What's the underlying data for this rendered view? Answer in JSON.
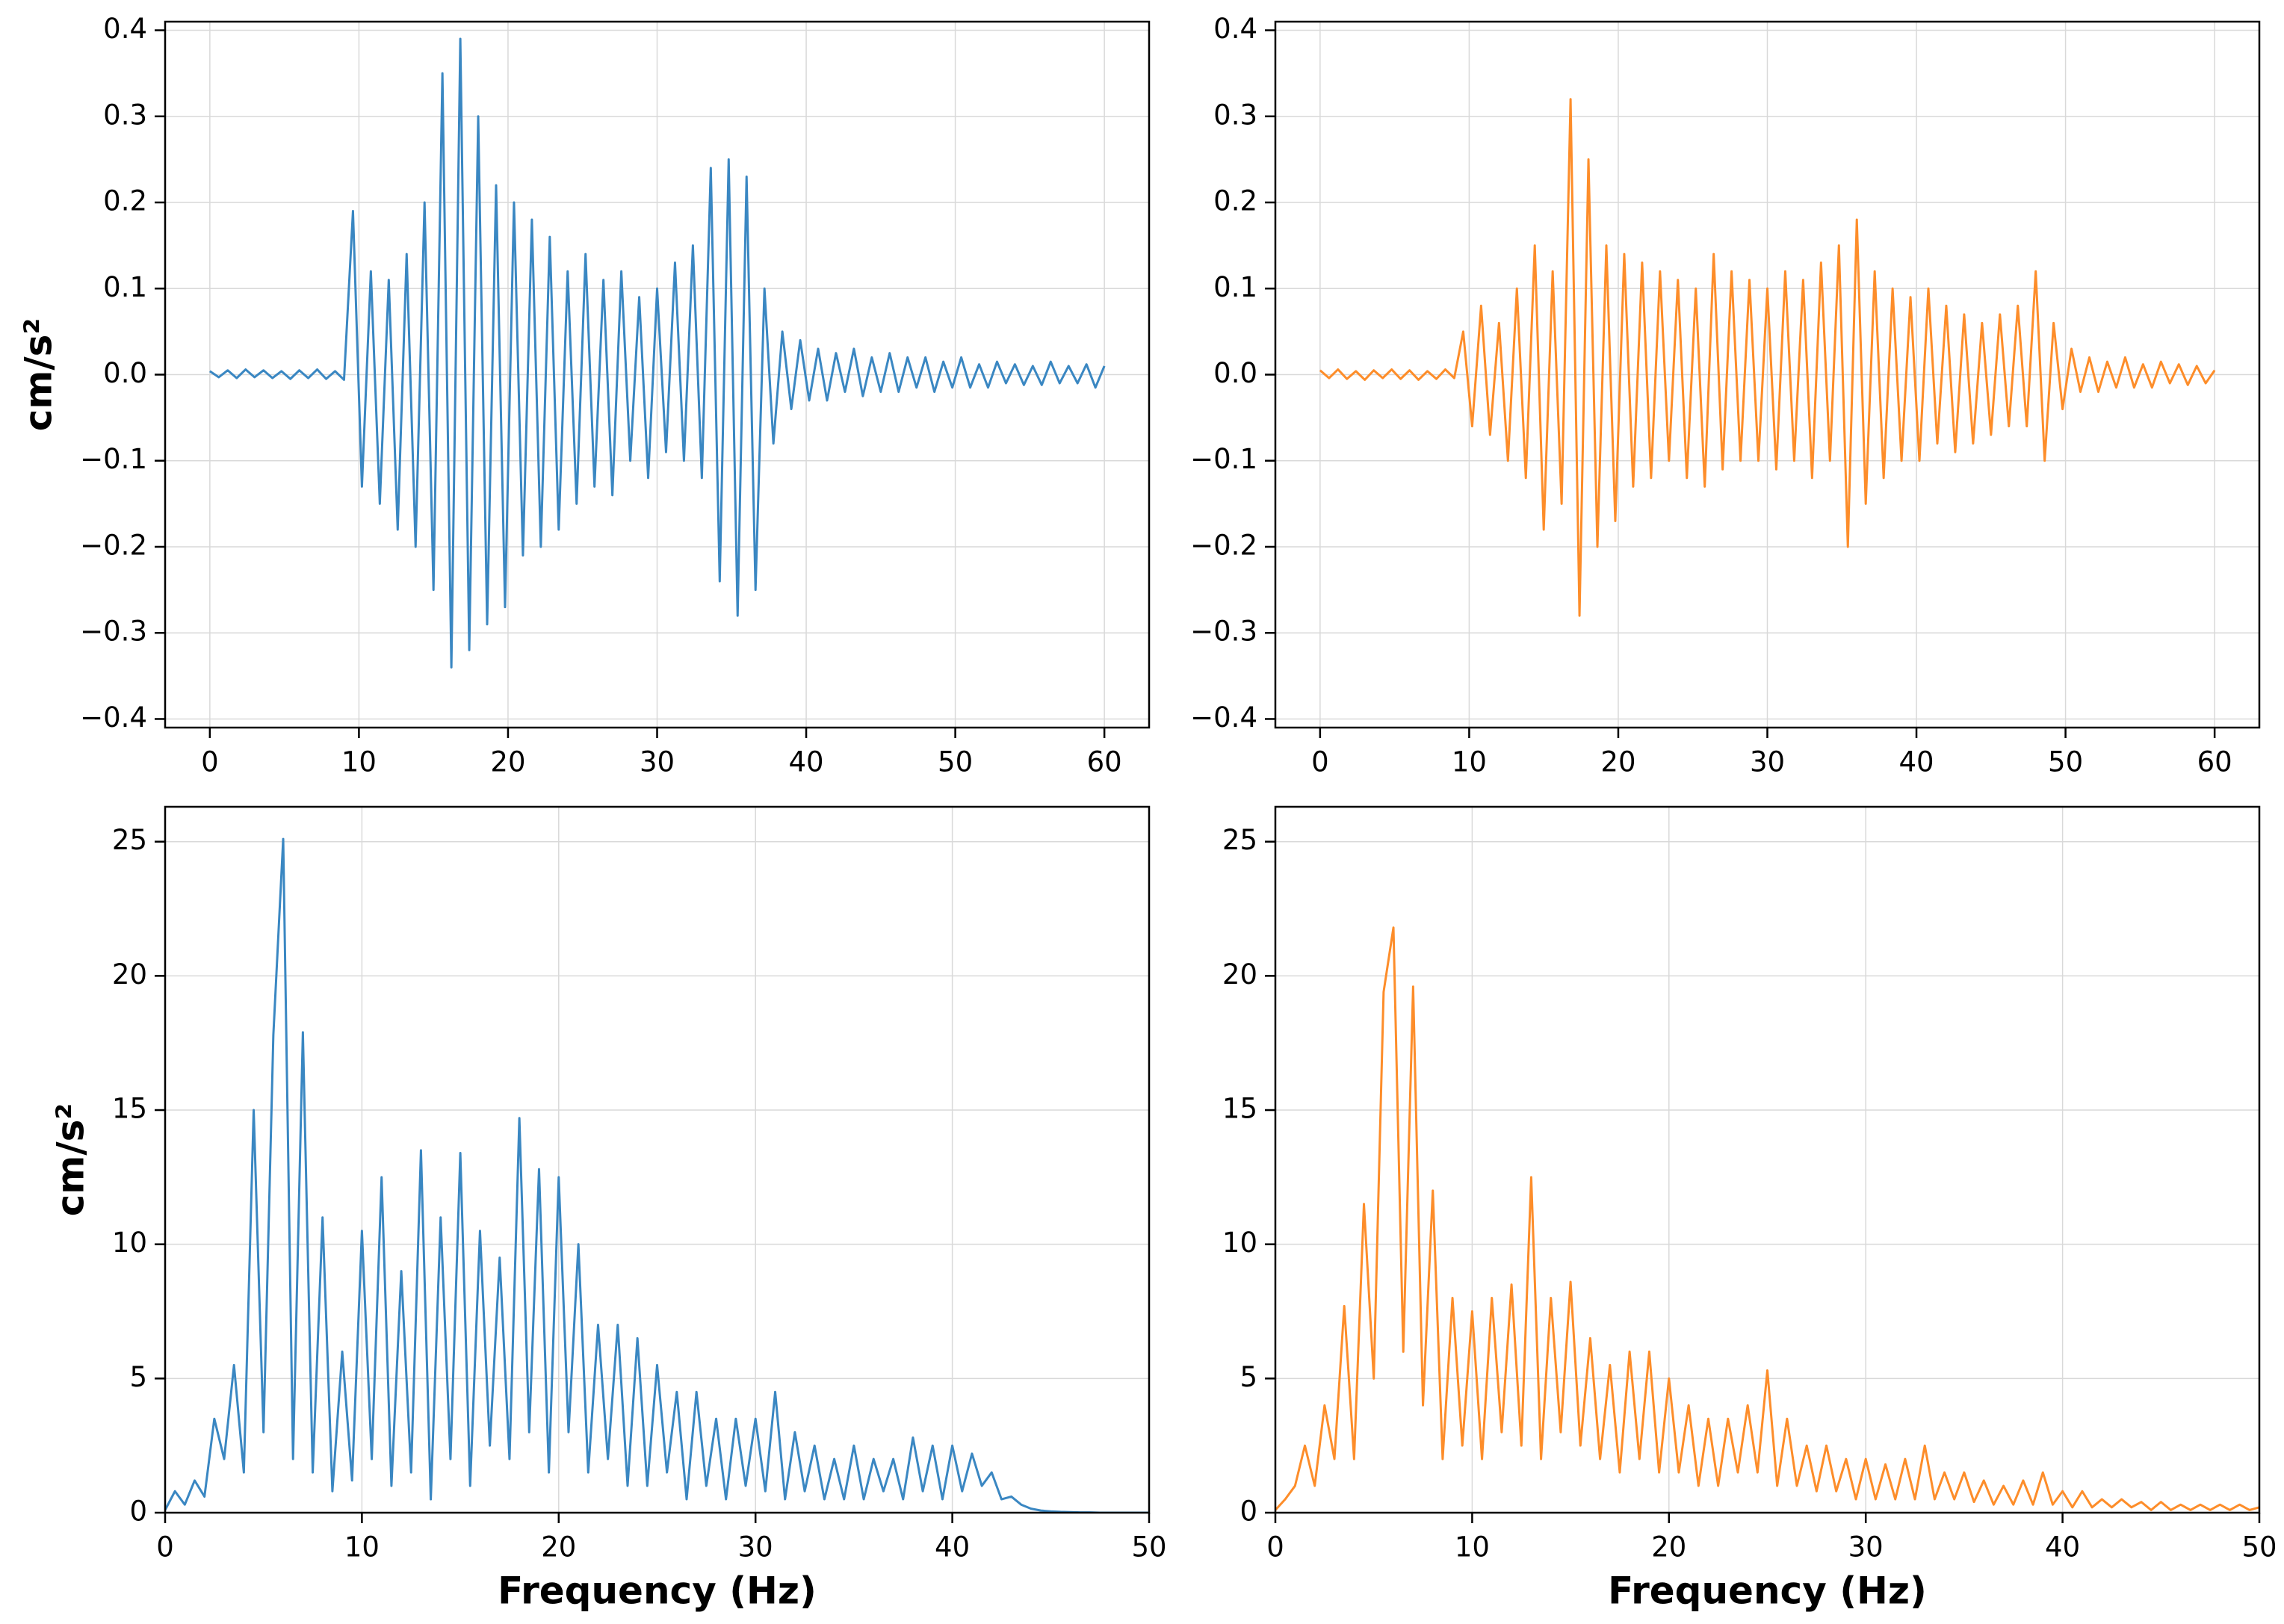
{
  "chart_data": [
    {
      "type": "line",
      "ylabel": "cm/s²",
      "xlim": [
        -3,
        63
      ],
      "ylim": [
        -0.41,
        0.41
      ],
      "xticks": [
        0,
        10,
        20,
        30,
        40,
        50,
        60
      ],
      "yticks": [
        {
          "value": -0.4,
          "label": "−0.4"
        },
        {
          "value": -0.3,
          "label": "−0.3"
        },
        {
          "value": -0.2,
          "label": "−0.2"
        },
        {
          "value": -0.1,
          "label": "−0.1"
        },
        {
          "value": 0,
          "label": "0.0"
        },
        0.1,
        0.2,
        0.3,
        0.4
      ],
      "grid": true,
      "x": [
        0,
        0.6,
        1.2,
        1.8,
        2.4,
        3,
        3.6,
        4.2,
        4.8,
        5.4,
        6,
        6.6,
        7.2,
        7.8,
        8.4,
        9,
        9.6,
        10.2,
        10.8,
        11.4,
        12,
        12.6,
        13.2,
        13.8,
        14.4,
        15,
        15.6,
        16.2,
        16.8,
        17.4,
        18,
        18.6,
        19.2,
        19.8,
        20.4,
        21,
        21.6,
        22.2,
        22.8,
        23.4,
        24,
        24.6,
        25.2,
        25.8,
        26.4,
        27,
        27.6,
        28.2,
        28.8,
        29.4,
        30,
        30.6,
        31.2,
        31.8,
        32.4,
        33,
        33.6,
        34.2,
        34.8,
        35.4,
        36,
        36.6,
        37.2,
        37.8,
        38.4,
        39,
        39.6,
        40.2,
        40.8,
        41.4,
        42,
        42.6,
        43.2,
        43.8,
        44.4,
        45,
        45.6,
        46.2,
        46.8,
        47.4,
        48,
        48.6,
        49.2,
        49.8,
        50.4,
        51,
        51.6,
        52.2,
        52.8,
        53.4,
        54,
        54.6,
        55.2,
        55.8,
        56.4,
        57,
        57.6,
        58.2,
        58.8,
        59.4,
        60
      ],
      "series": [
        {
          "color": "#3a87c2",
          "values": [
            0.004,
            -0.003,
            0.005,
            -0.004,
            0.006,
            -0.003,
            0.005,
            -0.004,
            0.004,
            -0.005,
            0.005,
            -0.004,
            0.006,
            -0.005,
            0.004,
            -0.006,
            0.19,
            -0.13,
            0.12,
            -0.15,
            0.11,
            -0.18,
            0.14,
            -0.2,
            0.2,
            -0.25,
            0.35,
            -0.34,
            0.39,
            -0.32,
            0.3,
            -0.29,
            0.22,
            -0.27,
            0.2,
            -0.21,
            0.18,
            -0.2,
            0.16,
            -0.18,
            0.12,
            -0.15,
            0.14,
            -0.13,
            0.11,
            -0.14,
            0.12,
            -0.1,
            0.09,
            -0.12,
            0.1,
            -0.09,
            0.13,
            -0.1,
            0.15,
            -0.12,
            0.24,
            -0.24,
            0.25,
            -0.28,
            0.23,
            -0.25,
            0.1,
            -0.08,
            0.05,
            -0.04,
            0.04,
            -0.03,
            0.03,
            -0.03,
            0.025,
            -0.02,
            0.03,
            -0.025,
            0.02,
            -0.02,
            0.025,
            -0.02,
            0.02,
            -0.015,
            0.02,
            -0.02,
            0.015,
            -0.015,
            0.02,
            -0.015,
            0.012,
            -0.015,
            0.015,
            -0.01,
            0.012,
            -0.012,
            0.01,
            -0.012,
            0.015,
            -0.01,
            0.01,
            -0.01,
            0.012,
            -0.015,
            0.01
          ]
        }
      ]
    },
    {
      "type": "line",
      "xlim": [
        -3,
        63
      ],
      "ylim": [
        -0.41,
        0.41
      ],
      "xticks": [
        0,
        10,
        20,
        30,
        40,
        50,
        60
      ],
      "yticks": [
        {
          "value": -0.4,
          "label": "−0.4"
        },
        {
          "value": -0.3,
          "label": "−0.3"
        },
        {
          "value": -0.2,
          "label": "−0.2"
        },
        {
          "value": -0.1,
          "label": "−0.1"
        },
        {
          "value": 0,
          "label": "0.0"
        },
        0.1,
        0.2,
        0.3,
        0.4
      ],
      "grid": true,
      "x": [
        0,
        0.6,
        1.2,
        1.8,
        2.4,
        3,
        3.6,
        4.2,
        4.8,
        5.4,
        6,
        6.6,
        7.2,
        7.8,
        8.4,
        9,
        9.6,
        10.2,
        10.8,
        11.4,
        12,
        12.6,
        13.2,
        13.8,
        14.4,
        15,
        15.6,
        16.2,
        16.8,
        17.4,
        18,
        18.6,
        19.2,
        19.8,
        20.4,
        21,
        21.6,
        22.2,
        22.8,
        23.4,
        24,
        24.6,
        25.2,
        25.8,
        26.4,
        27,
        27.6,
        28.2,
        28.8,
        29.4,
        30,
        30.6,
        31.2,
        31.8,
        32.4,
        33,
        33.6,
        34.2,
        34.8,
        35.4,
        36,
        36.6,
        37.2,
        37.8,
        38.4,
        39,
        39.6,
        40.2,
        40.8,
        41.4,
        42,
        42.6,
        43.2,
        43.8,
        44.4,
        45,
        45.6,
        46.2,
        46.8,
        47.4,
        48,
        48.6,
        49.2,
        49.8,
        50.4,
        51,
        51.6,
        52.2,
        52.8,
        53.4,
        54,
        54.6,
        55.2,
        55.8,
        56.4,
        57,
        57.6,
        58.2,
        58.8,
        59.4,
        60
      ],
      "series": [
        {
          "color": "#fd8d2a",
          "values": [
            0.005,
            -0.004,
            0.006,
            -0.005,
            0.004,
            -0.006,
            0.005,
            -0.004,
            0.006,
            -0.005,
            0.005,
            -0.006,
            0.004,
            -0.005,
            0.006,
            -0.004,
            0.05,
            -0.06,
            0.08,
            -0.07,
            0.06,
            -0.1,
            0.1,
            -0.12,
            0.15,
            -0.18,
            0.12,
            -0.15,
            0.32,
            -0.28,
            0.25,
            -0.2,
            0.15,
            -0.17,
            0.14,
            -0.13,
            0.13,
            -0.12,
            0.12,
            -0.1,
            0.11,
            -0.12,
            0.1,
            -0.13,
            0.14,
            -0.11,
            0.12,
            -0.1,
            0.11,
            -0.1,
            0.1,
            -0.11,
            0.12,
            -0.1,
            0.11,
            -0.12,
            0.13,
            -0.1,
            0.15,
            -0.2,
            0.18,
            -0.15,
            0.12,
            -0.12,
            0.1,
            -0.1,
            0.09,
            -0.1,
            0.1,
            -0.08,
            0.08,
            -0.09,
            0.07,
            -0.08,
            0.06,
            -0.07,
            0.07,
            -0.06,
            0.08,
            -0.06,
            0.12,
            -0.1,
            0.06,
            -0.04,
            0.03,
            -0.02,
            0.02,
            -0.02,
            0.015,
            -0.015,
            0.02,
            -0.015,
            0.012,
            -0.015,
            0.015,
            -0.01,
            0.012,
            -0.012,
            0.01,
            -0.01,
            0.005
          ]
        }
      ]
    },
    {
      "type": "line",
      "ylabel": "cm/s²",
      "xlabel": "Frequency (Hz)",
      "xlim": [
        0,
        50
      ],
      "ylim": [
        0,
        26.3
      ],
      "xticks": [
        0,
        10,
        20,
        30,
        40,
        50
      ],
      "yticks": [
        0,
        5,
        10,
        15,
        20,
        25
      ],
      "grid": true,
      "x": [
        0,
        0.5,
        1,
        1.5,
        2,
        2.5,
        3,
        3.5,
        4,
        4.5,
        5,
        5.5,
        6,
        6.5,
        7,
        7.5,
        8,
        8.5,
        9,
        9.5,
        10,
        10.5,
        11,
        11.5,
        12,
        12.5,
        13,
        13.5,
        14,
        14.5,
        15,
        15.5,
        16,
        16.5,
        17,
        17.5,
        18,
        18.5,
        19,
        19.5,
        20,
        20.5,
        21,
        21.5,
        22,
        22.5,
        23,
        23.5,
        24,
        24.5,
        25,
        25.5,
        26,
        26.5,
        27,
        27.5,
        28,
        28.5,
        29,
        29.5,
        30,
        30.5,
        31,
        31.5,
        32,
        32.5,
        33,
        33.5,
        34,
        34.5,
        35,
        35.5,
        36,
        36.5,
        37,
        37.5,
        38,
        38.5,
        39,
        39.5,
        40,
        40.5,
        41,
        41.5,
        42,
        42.5,
        43,
        43.5,
        44,
        44.5,
        45,
        45.5,
        46,
        46.5,
        47,
        47.5,
        48,
        48.5,
        49,
        49.5,
        50
      ],
      "series": [
        {
          "color": "#3a87c2",
          "values": [
            0.1,
            0.8,
            0.3,
            1.2,
            0.6,
            3.5,
            2.0,
            5.5,
            1.5,
            15.0,
            3.0,
            17.8,
            25.1,
            2.0,
            17.9,
            1.5,
            11.0,
            0.8,
            6.0,
            1.2,
            10.5,
            2.0,
            12.5,
            1.0,
            9.0,
            1.5,
            13.5,
            0.5,
            11.0,
            2.0,
            13.4,
            1.0,
            10.5,
            2.5,
            9.5,
            2.0,
            14.7,
            3.0,
            12.8,
            1.5,
            12.5,
            3.0,
            10.0,
            1.5,
            7.0,
            2.0,
            7.0,
            1.0,
            6.5,
            1.0,
            5.5,
            1.5,
            4.5,
            0.5,
            4.5,
            1.0,
            3.5,
            0.5,
            3.5,
            1.0,
            3.5,
            0.8,
            4.5,
            0.5,
            3.0,
            0.8,
            2.5,
            0.5,
            2.0,
            0.5,
            2.5,
            0.5,
            2.0,
            0.8,
            2.0,
            0.5,
            2.8,
            0.8,
            2.5,
            0.5,
            2.5,
            0.8,
            2.2,
            1.0,
            1.5,
            0.5,
            0.6,
            0.3,
            0.15,
            0.08,
            0.05,
            0.03,
            0.02,
            0.01,
            0.01,
            0.0,
            0.0,
            0.0,
            0.0,
            0.0,
            0.0
          ]
        }
      ]
    },
    {
      "type": "line",
      "xlabel": "Frequency (Hz)",
      "xlim": [
        0,
        50
      ],
      "ylim": [
        0,
        26.3
      ],
      "xticks": [
        0,
        10,
        20,
        30,
        40,
        50
      ],
      "yticks": [
        0,
        5,
        10,
        15,
        20,
        25
      ],
      "grid": true,
      "x": [
        0,
        0.5,
        1,
        1.5,
        2,
        2.5,
        3,
        3.5,
        4,
        4.5,
        5,
        5.5,
        6,
        6.5,
        7,
        7.5,
        8,
        8.5,
        9,
        9.5,
        10,
        10.5,
        11,
        11.5,
        12,
        12.5,
        13,
        13.5,
        14,
        14.5,
        15,
        15.5,
        16,
        16.5,
        17,
        17.5,
        18,
        18.5,
        19,
        19.5,
        20,
        20.5,
        21,
        21.5,
        22,
        22.5,
        23,
        23.5,
        24,
        24.5,
        25,
        25.5,
        26,
        26.5,
        27,
        27.5,
        28,
        28.5,
        29,
        29.5,
        30,
        30.5,
        31,
        31.5,
        32,
        32.5,
        33,
        33.5,
        34,
        34.5,
        35,
        35.5,
        36,
        36.5,
        37,
        37.5,
        38,
        38.5,
        39,
        39.5,
        40,
        40.5,
        41,
        41.5,
        42,
        42.5,
        43,
        43.5,
        44,
        44.5,
        45,
        45.5,
        46,
        46.5,
        47,
        47.5,
        48,
        48.5,
        49,
        49.5,
        50
      ],
      "series": [
        {
          "color": "#fd8d2a",
          "values": [
            0.1,
            0.5,
            1.0,
            2.5,
            1.0,
            4.0,
            2.0,
            7.7,
            2.0,
            11.5,
            5.0,
            19.4,
            21.8,
            6.0,
            19.6,
            4.0,
            12.0,
            2.0,
            8.0,
            2.5,
            7.5,
            2.0,
            8.0,
            3.0,
            8.5,
            2.5,
            12.5,
            2.0,
            8.0,
            3.0,
            8.6,
            2.5,
            6.5,
            2.0,
            5.5,
            1.5,
            6.0,
            2.0,
            6.0,
            1.5,
            5.0,
            1.5,
            4.0,
            1.0,
            3.5,
            1.0,
            3.5,
            1.5,
            4.0,
            1.5,
            5.3,
            1.0,
            3.5,
            1.0,
            2.5,
            0.8,
            2.5,
            0.8,
            2.0,
            0.5,
            2.0,
            0.5,
            1.8,
            0.5,
            2.0,
            0.5,
            2.5,
            0.5,
            1.5,
            0.5,
            1.5,
            0.4,
            1.2,
            0.3,
            1.0,
            0.3,
            1.2,
            0.3,
            1.5,
            0.3,
            0.8,
            0.2,
            0.8,
            0.2,
            0.5,
            0.2,
            0.5,
            0.2,
            0.4,
            0.1,
            0.4,
            0.1,
            0.3,
            0.1,
            0.3,
            0.1,
            0.3,
            0.1,
            0.3,
            0.1,
            0.2
          ]
        }
      ]
    }
  ]
}
